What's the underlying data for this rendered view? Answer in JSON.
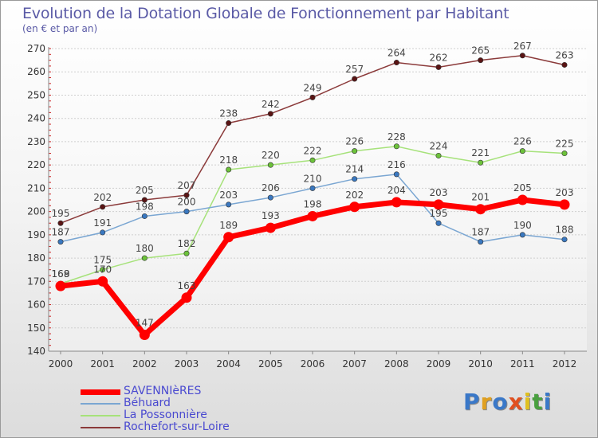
{
  "title": "Evolution de la Dotation Globale de Fonctionnement par Habitant",
  "subtitle": "(en € et par an)",
  "logo": {
    "text": "Proxiti",
    "letter_colors": [
      "#3a78c8",
      "#e0a020",
      "#3a78c8",
      "#e05020",
      "#e0c020",
      "#4aa040",
      "#3a78c8"
    ]
  },
  "chart_data": {
    "type": "line",
    "title": "Evolution de la Dotation Globale de Fonctionnement par Habitant",
    "ylabel": "(en € et par an)",
    "xlabel": "",
    "categories": [
      "2000",
      "2001",
      "2002",
      "2003",
      "2004",
      "2005",
      "2006",
      "2007",
      "2008",
      "2009",
      "2010",
      "2011",
      "2012"
    ],
    "ylim": [
      140,
      270
    ],
    "yticks": [
      140,
      150,
      160,
      170,
      180,
      190,
      200,
      210,
      220,
      230,
      240,
      250,
      260,
      270
    ],
    "grid": "horizontal",
    "legend_position": "bottom-left",
    "series": [
      {
        "name": "Rochefort-sur-Loire",
        "color": "#8b3a3a",
        "marker": "#5a1414",
        "values": [
          195,
          202,
          205,
          207,
          238,
          242,
          249,
          257,
          264,
          262,
          265,
          267,
          263
        ]
      },
      {
        "name": "La Possonnière",
        "color": "#a6e27a",
        "marker": "#6cc23a",
        "values": [
          169,
          175,
          180,
          182,
          218,
          220,
          222,
          226,
          228,
          224,
          221,
          226,
          225
        ]
      },
      {
        "name": "Béhuard",
        "color": "#7aa6d2",
        "marker": "#3a78c0",
        "values": [
          187,
          191,
          198,
          200,
          203,
          206,
          210,
          214,
          216,
          195,
          187,
          190,
          188
        ]
      },
      {
        "name": "SAVENNIèRES",
        "color": "#ff0000",
        "marker": "#ff0000",
        "values": [
          168,
          170,
          147,
          163,
          189,
          193,
          198,
          202,
          204,
          203,
          201,
          205,
          203
        ]
      }
    ],
    "legend": [
      "SAVENNIèRES",
      "Béhuard",
      "La Possonnière",
      "Rochefort-sur-Loire"
    ]
  }
}
